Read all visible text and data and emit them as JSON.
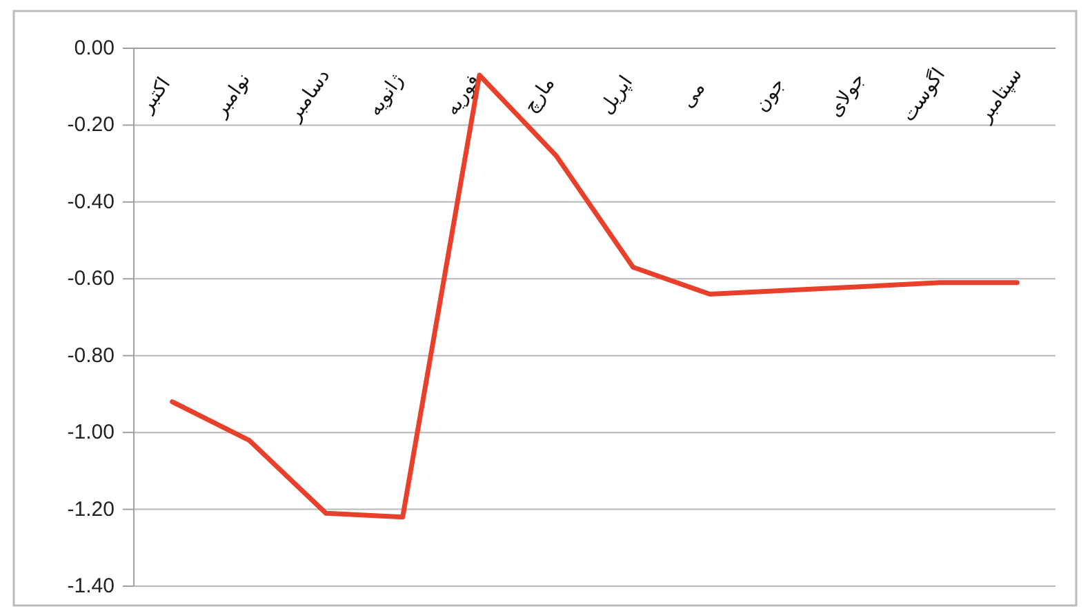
{
  "chart_data": {
    "type": "line",
    "categories": [
      "اکتبر",
      "نوامبر",
      "دسامبر",
      "ژانویه",
      "فوریه",
      "مارچ",
      "اپریل",
      "می",
      "جون",
      "جولای",
      "اگوست",
      "سپتامبر"
    ],
    "series": [
      {
        "color": "#e8402a",
        "values": [
          -0.92,
          -1.02,
          -1.21,
          -1.22,
          -0.07,
          -0.28,
          -0.57,
          -0.64,
          -0.63,
          -0.62,
          -0.61,
          -0.61
        ]
      }
    ],
    "ylim": [
      -1.4,
      0
    ],
    "yticks": [
      {
        "value": 0,
        "label": "0.00"
      },
      {
        "value": -0.2,
        "label": "-0.20"
      },
      {
        "value": -0.4,
        "label": "-0.40"
      },
      {
        "value": -0.6,
        "label": "-0.60"
      },
      {
        "value": -0.8,
        "label": "-0.80"
      },
      {
        "value": -1.0,
        "label": "-1.00"
      },
      {
        "value": -1.2,
        "label": "-1.20"
      },
      {
        "value": -1.4,
        "label": "-1.40"
      }
    ],
    "grid": "y",
    "marker": "none",
    "line_style": "solid"
  }
}
